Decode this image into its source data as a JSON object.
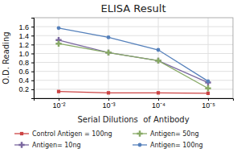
{
  "chart_data": {
    "type": "line",
    "title": "ELISA Result",
    "xlabel": "Serial Dilutions  of Antibody",
    "ylabel": "O.D. Reading",
    "categories": [
      "10⁻²",
      "10⁻³",
      "10⁻⁴",
      "10⁻⁵"
    ],
    "series": [
      {
        "name": "Control Antigen = 100ng",
        "color": "#cc4444",
        "marker": "square",
        "line_style": "solid",
        "values": [
          0.15,
          0.12,
          0.12,
          0.11
        ]
      },
      {
        "name": "Antigen= 10ng",
        "color": "#7b68a0",
        "marker": "plus",
        "line_style": "solid",
        "values": [
          1.3,
          1.02,
          0.84,
          0.35
        ]
      },
      {
        "name": "Antigen= 50ng",
        "color": "#88aa66",
        "marker": "plus",
        "line_style": "solid",
        "values": [
          1.22,
          1.02,
          0.84,
          0.22
        ]
      },
      {
        "name": "Antigen= 100ng",
        "color": "#5580bb",
        "marker": "circle",
        "line_style": "solid",
        "values": [
          1.57,
          1.36,
          1.08,
          0.38
        ]
      }
    ],
    "ylim": [
      0,
      1.8
    ],
    "yticks": [
      0.2,
      0.4,
      0.6,
      0.8,
      {
        "value": 1.0,
        "label": "1.0"
      },
      1.2,
      1.4,
      1.6
    ],
    "grid": true,
    "legend": "bottom"
  }
}
